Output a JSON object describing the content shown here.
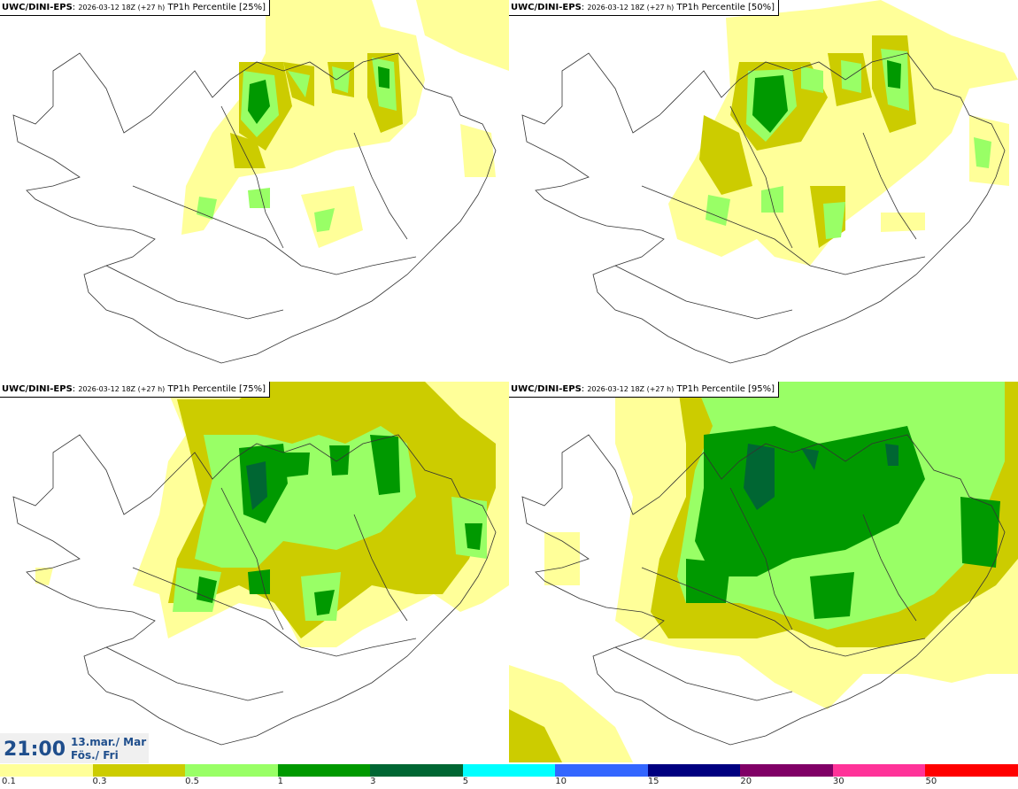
{
  "panels": [
    {
      "model": "UWC/DINI-EPS",
      "run": "2026-03-12 18Z (+27 h)",
      "label": "TP1h Percentile [25%]"
    },
    {
      "model": "UWC/DINI-EPS",
      "run": "2026-03-12 18Z (+27 h)",
      "label": "TP1h Percentile [50%]"
    },
    {
      "model": "UWC/DINI-EPS",
      "run": "2026-03-12 18Z (+27 h)",
      "label": "TP1h Percentile [75%]"
    },
    {
      "model": "UWC/DINI-EPS",
      "run": "2026-03-12 18Z (+27 h)",
      "label": "TP1h Percentile [95%]"
    }
  ],
  "valid_time": {
    "time": "21:00",
    "date_line1": "13.mar./ Mar",
    "date_line2": "Fös./ Fri"
  },
  "legend": {
    "colors": [
      "#ffff99",
      "#cccc00",
      "#99ff66",
      "#009900",
      "#006633",
      "#00ffff",
      "#3366ff",
      "#000080",
      "#800066",
      "#ff3399",
      "#ff0000"
    ],
    "ticks": [
      "0.1",
      "0.3",
      "0.5",
      "1",
      "3",
      "5",
      "10",
      "15",
      "20",
      "30",
      "50"
    ]
  }
}
